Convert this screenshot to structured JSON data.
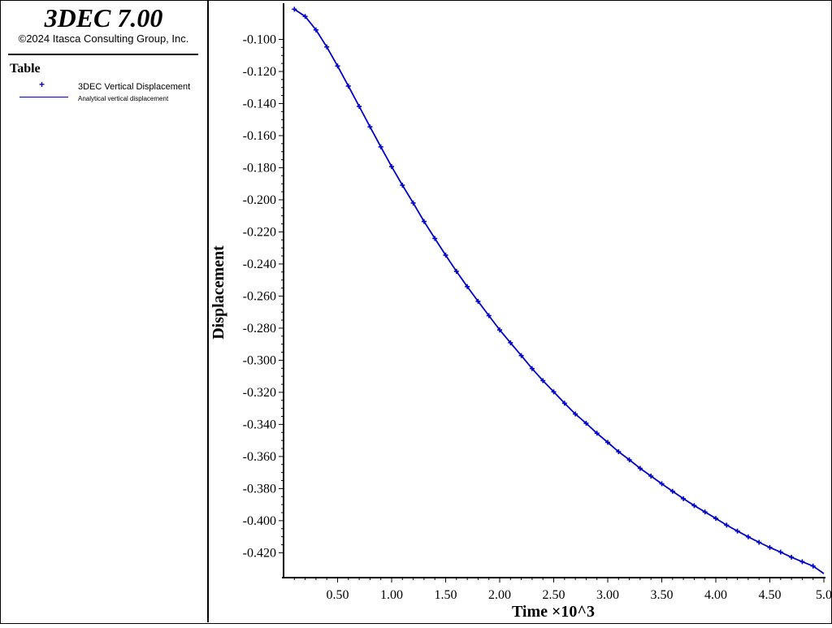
{
  "app": {
    "title": "3DEC 7.00",
    "copyright": "©2024 Itasca Consulting Group, Inc."
  },
  "legend": {
    "title": "Table",
    "entries": [
      {
        "label": "3DEC Vertical Displacement",
        "symbol": "plus-marker",
        "color": "#0000cc"
      },
      {
        "label": "Analytical vertical displacement",
        "symbol": "solid-line",
        "color": "#0000cc"
      }
    ]
  },
  "chart_data": {
    "type": "line",
    "xlabel": "Time ×10^3",
    "ylabel": "Displacement",
    "xlim": [
      0.0,
      5.0
    ],
    "ylim": [
      -0.4345,
      -0.0795
    ],
    "xticks": [
      "0.50",
      "1.00",
      "1.50",
      "2.00",
      "2.50",
      "3.00",
      "3.50",
      "4.00",
      "4.50",
      "5.0"
    ],
    "yticks": [
      "-0.100",
      "-0.120",
      "-0.140",
      "-0.160",
      "-0.180",
      "-0.200",
      "-0.220",
      "-0.240",
      "-0.260",
      "-0.280",
      "-0.300",
      "-0.320",
      "-0.340",
      "-0.360",
      "-0.380",
      "-0.400",
      "-0.420"
    ],
    "grid": false,
    "series": [
      {
        "name": "3DEC Vertical Displacement",
        "style": "markers",
        "color": "#0000cc",
        "x": [
          0.1,
          0.2,
          0.3,
          0.4,
          0.5,
          0.6,
          0.7,
          0.8,
          0.9,
          1.0,
          1.1,
          1.2,
          1.3,
          1.4,
          1.5,
          1.6,
          1.7,
          1.8,
          1.9,
          2.0,
          2.1,
          2.2,
          2.3,
          2.4,
          2.5,
          2.6,
          2.7,
          2.8,
          2.9,
          3.0,
          3.1,
          3.2,
          3.3,
          3.4,
          3.5,
          3.6,
          3.7,
          3.8,
          3.9,
          4.0,
          4.1,
          4.2,
          4.3,
          4.4,
          4.5,
          4.6,
          4.7,
          4.8,
          4.9
        ],
        "y": [
          -0.0812,
          -0.0857,
          -0.0941,
          -0.1047,
          -0.1166,
          -0.1291,
          -0.1418,
          -0.1545,
          -0.167,
          -0.1793,
          -0.1909,
          -0.202,
          -0.2135,
          -0.2241,
          -0.2345,
          -0.2446,
          -0.2541,
          -0.2633,
          -0.2722,
          -0.2811,
          -0.2891,
          -0.2971,
          -0.3052,
          -0.3127,
          -0.3197,
          -0.3268,
          -0.3335,
          -0.3393,
          -0.3455,
          -0.3512,
          -0.357,
          -0.3621,
          -0.3674,
          -0.3722,
          -0.377,
          -0.3817,
          -0.3863,
          -0.3906,
          -0.3946,
          -0.3986,
          -0.4028,
          -0.4065,
          -0.4101,
          -0.4135,
          -0.4167,
          -0.4196,
          -0.4228,
          -0.4256,
          -0.4283
        ]
      },
      {
        "name": "Analytical vertical displacement",
        "style": "line",
        "color": "#0000cc",
        "x": [
          0.1,
          0.2,
          0.3,
          0.4,
          0.5,
          0.6,
          0.7,
          0.8,
          0.9,
          1.0,
          1.1,
          1.2,
          1.3,
          1.4,
          1.5,
          1.6,
          1.7,
          1.8,
          1.9,
          2.0,
          2.1,
          2.2,
          2.3,
          2.4,
          2.5,
          2.6,
          2.7,
          2.8,
          2.9,
          3.0,
          3.1,
          3.2,
          3.3,
          3.4,
          3.5,
          3.6,
          3.7,
          3.8,
          3.9,
          4.0,
          4.1,
          4.2,
          4.3,
          4.4,
          4.5,
          4.6,
          4.7,
          4.8,
          4.9,
          5.0
        ],
        "y": [
          -0.0812,
          -0.0857,
          -0.0941,
          -0.1047,
          -0.1166,
          -0.1291,
          -0.1418,
          -0.1545,
          -0.167,
          -0.1793,
          -0.1909,
          -0.202,
          -0.2135,
          -0.2241,
          -0.2345,
          -0.2446,
          -0.2541,
          -0.2633,
          -0.2722,
          -0.2811,
          -0.2891,
          -0.2971,
          -0.3052,
          -0.3127,
          -0.3197,
          -0.3268,
          -0.3335,
          -0.3393,
          -0.3455,
          -0.3512,
          -0.357,
          -0.3621,
          -0.3674,
          -0.3722,
          -0.377,
          -0.3817,
          -0.3863,
          -0.3906,
          -0.3946,
          -0.3986,
          -0.4028,
          -0.4065,
          -0.4101,
          -0.4135,
          -0.4167,
          -0.4196,
          -0.4228,
          -0.4256,
          -0.4283,
          -0.433
        ]
      }
    ]
  }
}
